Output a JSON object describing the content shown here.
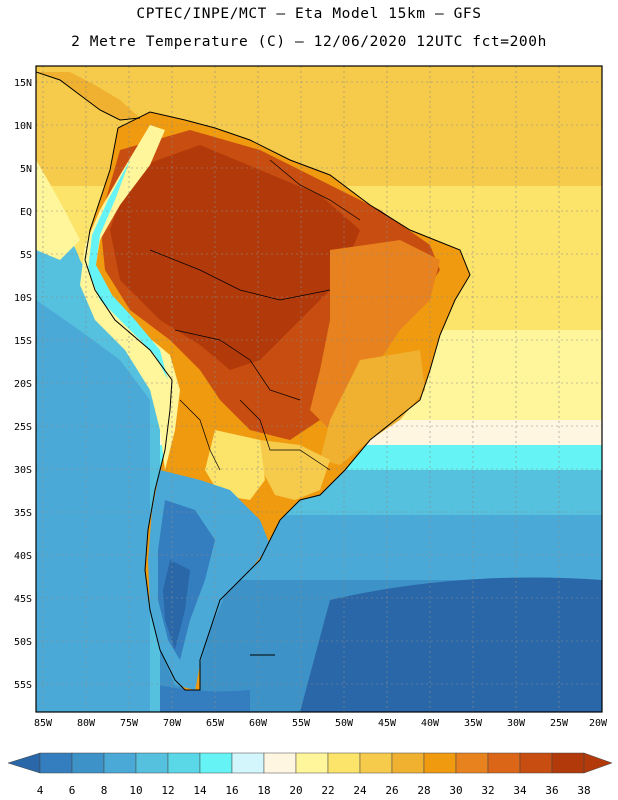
{
  "header": {
    "line1": "CPTEC/INPE/MCT –  Eta Model 15km – GFS",
    "line2": "2 Metre Temperature (C) – 12/06/2020 12UTC fct=200h"
  },
  "map": {
    "lat_labels": [
      "15N",
      "10N",
      "5N",
      "EQ",
      "5S",
      "10S",
      "15S",
      "20S",
      "25S",
      "30S",
      "35S",
      "40S",
      "45S",
      "50S",
      "55S"
    ],
    "lon_labels": [
      "85W",
      "80W",
      "75W",
      "70W",
      "65W",
      "60W",
      "55W",
      "50W",
      "45W",
      "40W",
      "35W",
      "30W",
      "25W",
      "20W"
    ]
  },
  "colorbar": {
    "ticks": [
      "4",
      "6",
      "8",
      "10",
      "12",
      "14",
      "16",
      "18",
      "20",
      "22",
      "24",
      "26",
      "28",
      "30",
      "32",
      "34",
      "36",
      "38"
    ],
    "colors": [
      "#2a67a9",
      "#347ebf",
      "#3d93c8",
      "#4aa9d6",
      "#56c1df",
      "#5bd8e8",
      "#66f3f5",
      "#d2f6fb",
      "#fff6e2",
      "#fff59a",
      "#fce36a",
      "#f6cb4c",
      "#efb12f",
      "#f09a10",
      "#e8821e",
      "#db6618",
      "#c74d10",
      "#b23a0a"
    ]
  }
}
